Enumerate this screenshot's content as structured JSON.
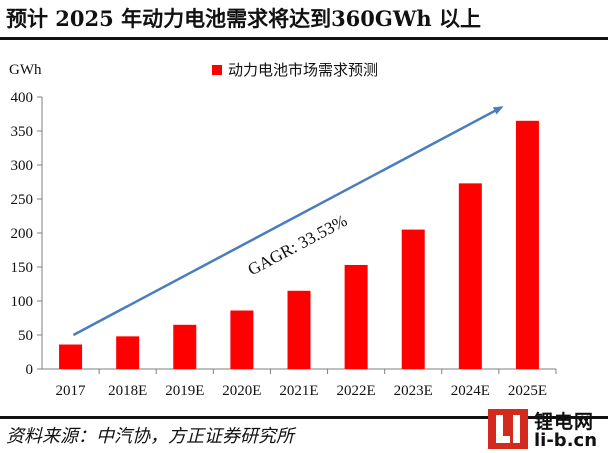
{
  "page": {
    "title": "预计 2025 年动力电池需求将达到360GWh 以上",
    "source": "资料来源：中汽协，方正证券研究所",
    "logo_cn": "锂电网",
    "logo_en": "li-b.cn"
  },
  "colors": {
    "bar": "#ff0000",
    "arrow": "#4a7cc0",
    "axis": "#7f7f7f"
  },
  "chart_data": {
    "type": "bar",
    "unit_label": "GWh",
    "categories": [
      "2017",
      "2018E",
      "2019E",
      "2020E",
      "2021E",
      "2022E",
      "2023E",
      "2024E",
      "2025E"
    ],
    "series": [
      {
        "name": "动力电池市场需求预测",
        "values": [
          36,
          48,
          65,
          86,
          115,
          153,
          205,
          273,
          365
        ]
      }
    ],
    "ylim": [
      0,
      400
    ],
    "yticks": [
      0,
      50,
      100,
      150,
      200,
      250,
      300,
      350,
      400
    ],
    "legend": "top-center",
    "grid": false,
    "annotation": {
      "text": "GAGR: 33.53%",
      "shape": "arrow",
      "from_value": 50,
      "to_value": 385
    }
  }
}
